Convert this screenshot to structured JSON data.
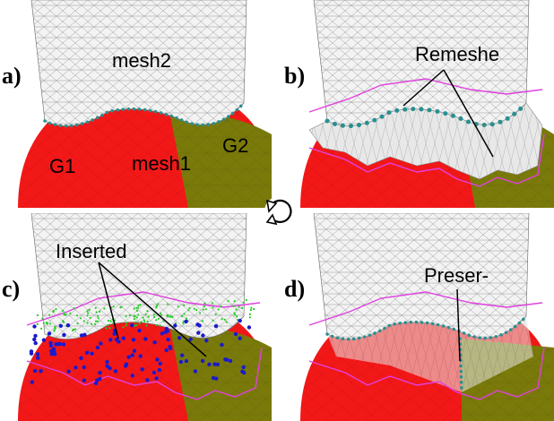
{
  "figure": {
    "panels": [
      {
        "label": "a)",
        "annotations": [
          "mesh2",
          "G1",
          "mesh1",
          "G2"
        ]
      },
      {
        "label": "b)",
        "annotations": [
          "Remeshe"
        ]
      },
      {
        "label": "c)",
        "annotations": [
          "Inserted"
        ]
      },
      {
        "label": "d)",
        "annotations": [
          "Preser-"
        ]
      }
    ],
    "center_icon": "cycle-arrow-icon",
    "colors": {
      "region_g1": "#f21818",
      "region_g2": "#7a7a0a",
      "mesh_upper": "#f2f2f2",
      "seam_dots": "#2a8f8f",
      "remesh_outline": "#e040e0",
      "inserted_green": "#22cc22",
      "inserted_blue": "#1a1acc"
    }
  }
}
